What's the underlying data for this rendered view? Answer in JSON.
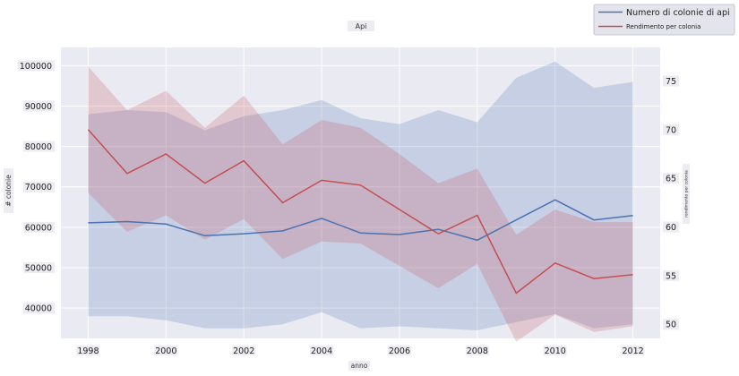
{
  "chart_data": {
    "type": "line",
    "title": "Api",
    "xlabel": "anno",
    "ylabel": "# colonie",
    "y2label": "rendimento per colonia",
    "x": [
      1998,
      1999,
      2000,
      2001,
      2002,
      2003,
      2004,
      2005,
      2006,
      2007,
      2008,
      2009,
      2010,
      2011,
      2012
    ],
    "xticks": [
      "1998",
      "2000",
      "2002",
      "2004",
      "2006",
      "2008",
      "2010",
      "2012"
    ],
    "xlim": [
      1997.3,
      2012.7
    ],
    "yticks": [
      "40000",
      "50000",
      "60000",
      "70000",
      "80000",
      "90000",
      "100000"
    ],
    "y2ticks": [
      "50",
      "55",
      "60",
      "65",
      "70",
      "75"
    ],
    "ylim": [
      32500,
      104500
    ],
    "y2lim": [
      48.55,
      78.45
    ],
    "grid": true,
    "legend_position": "top-right",
    "series": [
      {
        "name": "Numero di colonie di api",
        "axis": "left",
        "color": "#4c72b0",
        "values": [
          61100,
          61400,
          60800,
          57900,
          58400,
          59100,
          62200,
          58600,
          58200,
          59500,
          56800,
          61800,
          66800,
          61800,
          62900
        ],
        "band_upper": [
          88000,
          89000,
          88500,
          84000,
          87500,
          89000,
          91500,
          87000,
          85500,
          89000,
          86000,
          97000,
          101000,
          94500,
          96000
        ],
        "band_lower": [
          38000,
          38000,
          37000,
          35000,
          35000,
          36000,
          39000,
          35000,
          35500,
          35000,
          34500,
          36500,
          38500,
          35000,
          36000
        ]
      },
      {
        "name": "Rendimento per colonia",
        "axis": "right",
        "color": "#c44e52",
        "values": [
          70,
          65.5,
          67.5,
          64.5,
          66.8,
          62.5,
          64.8,
          64.3,
          61.8,
          59.3,
          61.2,
          53.2,
          56.3,
          54.7,
          55.1
        ],
        "band_upper": [
          76.5,
          72,
          74,
          70.2,
          73.5,
          68.5,
          71,
          70.2,
          67.5,
          64.5,
          66,
          59.2,
          61.8,
          60.5,
          60.5
        ],
        "band_lower": [
          63.5,
          59.5,
          61.2,
          58.7,
          60.8,
          56.7,
          58.5,
          58.3,
          56,
          53.7,
          56.2,
          48.2,
          51,
          49.2,
          49.8
        ]
      }
    ]
  }
}
